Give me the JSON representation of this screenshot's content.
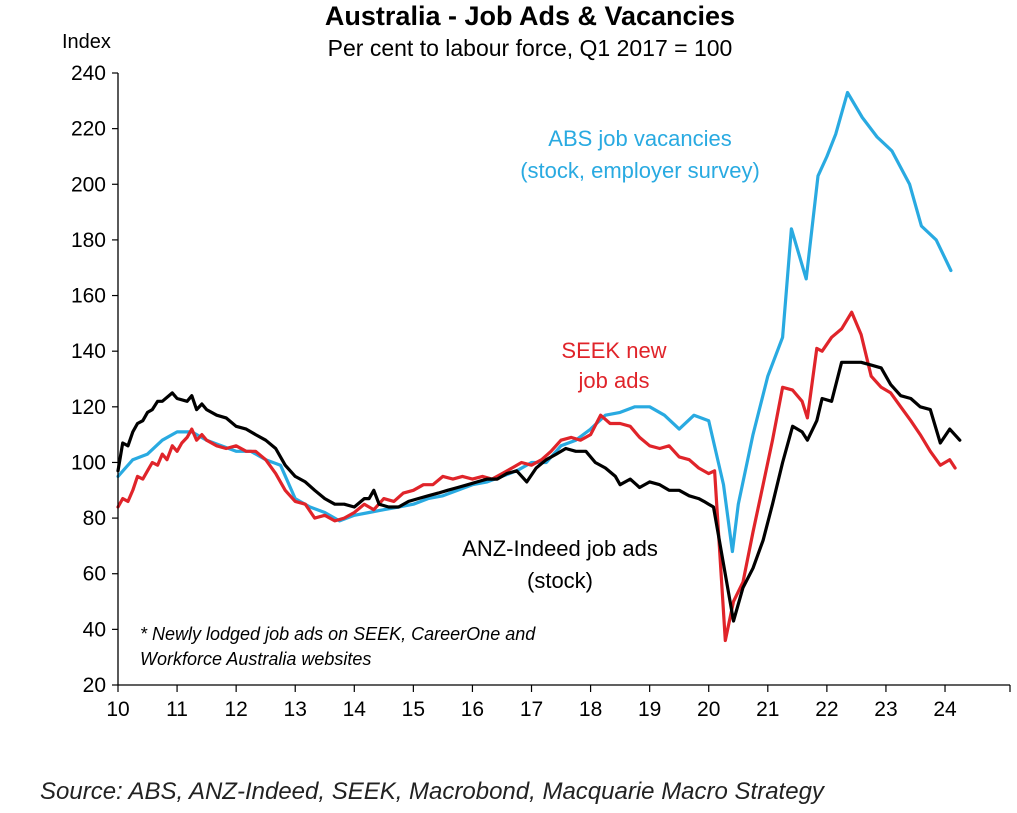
{
  "chart_data": {
    "type": "line",
    "title": "Australia - Job Ads & Vacancies",
    "subtitle": "Per cent to labour force, Q1 2017 = 100",
    "ylabel": "Index",
    "xlim": [
      2010,
      2025.1
    ],
    "ylim": [
      20,
      240
    ],
    "yticks": [
      20,
      40,
      60,
      80,
      100,
      120,
      140,
      160,
      180,
      200,
      220,
      240
    ],
    "xticks": [
      {
        "v": 2010,
        "label": "10"
      },
      {
        "v": 2011,
        "label": "11"
      },
      {
        "v": 2012,
        "label": "12"
      },
      {
        "v": 2013,
        "label": "13"
      },
      {
        "v": 2014,
        "label": "14"
      },
      {
        "v": 2015,
        "label": "15"
      },
      {
        "v": 2016,
        "label": "16"
      },
      {
        "v": 2017,
        "label": "17"
      },
      {
        "v": 2018,
        "label": "18"
      },
      {
        "v": 2019,
        "label": "19"
      },
      {
        "v": 2020,
        "label": "20"
      },
      {
        "v": 2021,
        "label": "21"
      },
      {
        "v": 2022,
        "label": "22"
      },
      {
        "v": 2023,
        "label": "23"
      },
      {
        "v": 2024,
        "label": "24"
      }
    ],
    "grid": false,
    "series": [
      {
        "name": "ABS job vacancies",
        "label_lines": [
          "ABS job vacancies",
          "(stock, employer survey)"
        ],
        "color": "#29aae1",
        "points": [
          [
            2010.0,
            95
          ],
          [
            2010.25,
            101
          ],
          [
            2010.5,
            103
          ],
          [
            2010.75,
            108
          ],
          [
            2011.0,
            111
          ],
          [
            2011.25,
            111
          ],
          [
            2011.5,
            108
          ],
          [
            2011.75,
            106
          ],
          [
            2012.0,
            104
          ],
          [
            2012.25,
            104
          ],
          [
            2012.5,
            101
          ],
          [
            2012.75,
            99
          ],
          [
            2013.0,
            87
          ],
          [
            2013.25,
            84
          ],
          [
            2013.5,
            82
          ],
          [
            2013.75,
            79
          ],
          [
            2014.0,
            81
          ],
          [
            2014.25,
            82
          ],
          [
            2014.5,
            83
          ],
          [
            2014.75,
            84
          ],
          [
            2015.0,
            85
          ],
          [
            2015.25,
            87
          ],
          [
            2015.5,
            88
          ],
          [
            2015.75,
            90
          ],
          [
            2016.0,
            92
          ],
          [
            2016.25,
            93
          ],
          [
            2016.5,
            95
          ],
          [
            2016.75,
            97
          ],
          [
            2017.0,
            100
          ],
          [
            2017.25,
            100
          ],
          [
            2017.5,
            106
          ],
          [
            2017.75,
            108
          ],
          [
            2018.0,
            112
          ],
          [
            2018.25,
            117
          ],
          [
            2018.5,
            118
          ],
          [
            2018.75,
            120
          ],
          [
            2019.0,
            120
          ],
          [
            2019.25,
            117
          ],
          [
            2019.5,
            112
          ],
          [
            2019.75,
            117
          ],
          [
            2020.0,
            115
          ],
          [
            2020.25,
            92
          ],
          [
            2020.4,
            68
          ],
          [
            2020.5,
            85
          ],
          [
            2020.75,
            110
          ],
          [
            2021.0,
            131
          ],
          [
            2021.25,
            145
          ],
          [
            2021.4,
            184
          ],
          [
            2021.65,
            166
          ],
          [
            2021.85,
            203
          ],
          [
            2022.0,
            210
          ],
          [
            2022.15,
            218
          ],
          [
            2022.35,
            233
          ],
          [
            2022.6,
            224
          ],
          [
            2022.85,
            217
          ],
          [
            2023.1,
            212
          ],
          [
            2023.4,
            200
          ],
          [
            2023.6,
            185
          ],
          [
            2023.85,
            180
          ],
          [
            2024.1,
            169
          ]
        ]
      },
      {
        "name": "SEEK new job ads",
        "label_lines": [
          "SEEK new",
          "job ads"
        ],
        "color": "#e0242a",
        "points": [
          [
            2010.0,
            84
          ],
          [
            2010.08,
            87
          ],
          [
            2010.17,
            86
          ],
          [
            2010.25,
            90
          ],
          [
            2010.33,
            95
          ],
          [
            2010.42,
            94
          ],
          [
            2010.5,
            97
          ],
          [
            2010.58,
            100
          ],
          [
            2010.67,
            99
          ],
          [
            2010.75,
            103
          ],
          [
            2010.83,
            101
          ],
          [
            2010.92,
            106
          ],
          [
            2011.0,
            104
          ],
          [
            2011.08,
            107
          ],
          [
            2011.17,
            109
          ],
          [
            2011.25,
            112
          ],
          [
            2011.33,
            108
          ],
          [
            2011.42,
            110
          ],
          [
            2011.5,
            108
          ],
          [
            2011.67,
            106
          ],
          [
            2011.83,
            105
          ],
          [
            2012.0,
            106
          ],
          [
            2012.17,
            104
          ],
          [
            2012.33,
            104
          ],
          [
            2012.5,
            101
          ],
          [
            2012.67,
            96
          ],
          [
            2012.83,
            90
          ],
          [
            2013.0,
            86
          ],
          [
            2013.17,
            85
          ],
          [
            2013.33,
            80
          ],
          [
            2013.5,
            81
          ],
          [
            2013.67,
            79
          ],
          [
            2013.83,
            80
          ],
          [
            2014.0,
            82
          ],
          [
            2014.17,
            85
          ],
          [
            2014.33,
            83
          ],
          [
            2014.5,
            87
          ],
          [
            2014.67,
            86
          ],
          [
            2014.83,
            89
          ],
          [
            2015.0,
            90
          ],
          [
            2015.17,
            92
          ],
          [
            2015.33,
            92
          ],
          [
            2015.5,
            95
          ],
          [
            2015.67,
            94
          ],
          [
            2015.83,
            95
          ],
          [
            2016.0,
            94
          ],
          [
            2016.17,
            95
          ],
          [
            2016.33,
            94
          ],
          [
            2016.5,
            96
          ],
          [
            2016.67,
            98
          ],
          [
            2016.83,
            100
          ],
          [
            2017.0,
            99
          ],
          [
            2017.17,
            101
          ],
          [
            2017.33,
            104
          ],
          [
            2017.5,
            108
          ],
          [
            2017.67,
            109
          ],
          [
            2017.83,
            108
          ],
          [
            2018.0,
            110
          ],
          [
            2018.17,
            117
          ],
          [
            2018.33,
            114
          ],
          [
            2018.5,
            114
          ],
          [
            2018.67,
            113
          ],
          [
            2018.83,
            109
          ],
          [
            2019.0,
            106
          ],
          [
            2019.17,
            105
          ],
          [
            2019.33,
            106
          ],
          [
            2019.5,
            102
          ],
          [
            2019.67,
            101
          ],
          [
            2019.83,
            98
          ],
          [
            2020.0,
            96
          ],
          [
            2020.1,
            97
          ],
          [
            2020.28,
            36
          ],
          [
            2020.42,
            50
          ],
          [
            2020.58,
            57
          ],
          [
            2020.75,
            75
          ],
          [
            2020.92,
            92
          ],
          [
            2021.08,
            108
          ],
          [
            2021.25,
            127
          ],
          [
            2021.42,
            126
          ],
          [
            2021.58,
            122
          ],
          [
            2021.67,
            116
          ],
          [
            2021.83,
            141
          ],
          [
            2021.92,
            140
          ],
          [
            2022.08,
            145
          ],
          [
            2022.25,
            148
          ],
          [
            2022.42,
            154
          ],
          [
            2022.58,
            146
          ],
          [
            2022.75,
            131
          ],
          [
            2022.92,
            127
          ],
          [
            2023.08,
            125
          ],
          [
            2023.25,
            120
          ],
          [
            2023.42,
            115
          ],
          [
            2023.58,
            110
          ],
          [
            2023.75,
            104
          ],
          [
            2023.92,
            99
          ],
          [
            2024.0,
            100
          ],
          [
            2024.08,
            101
          ],
          [
            2024.17,
            98
          ]
        ]
      },
      {
        "name": "ANZ-Indeed job ads",
        "label_lines": [
          "ANZ-Indeed job ads",
          "(stock)"
        ],
        "color": "#000000",
        "points": [
          [
            2010.0,
            97
          ],
          [
            2010.08,
            107
          ],
          [
            2010.17,
            106
          ],
          [
            2010.25,
            111
          ],
          [
            2010.33,
            114
          ],
          [
            2010.42,
            115
          ],
          [
            2010.5,
            118
          ],
          [
            2010.58,
            119
          ],
          [
            2010.67,
            122
          ],
          [
            2010.75,
            122
          ],
          [
            2010.92,
            125
          ],
          [
            2011.0,
            123
          ],
          [
            2011.17,
            122
          ],
          [
            2011.25,
            124
          ],
          [
            2011.33,
            119
          ],
          [
            2011.42,
            121
          ],
          [
            2011.5,
            119
          ],
          [
            2011.67,
            117
          ],
          [
            2011.83,
            116
          ],
          [
            2012.0,
            113
          ],
          [
            2012.17,
            112
          ],
          [
            2012.33,
            110
          ],
          [
            2012.5,
            108
          ],
          [
            2012.67,
            105
          ],
          [
            2012.83,
            99
          ],
          [
            2013.0,
            95
          ],
          [
            2013.17,
            93
          ],
          [
            2013.33,
            90
          ],
          [
            2013.5,
            87
          ],
          [
            2013.67,
            85
          ],
          [
            2013.83,
            85
          ],
          [
            2014.0,
            84
          ],
          [
            2014.17,
            87
          ],
          [
            2014.25,
            87
          ],
          [
            2014.33,
            90
          ],
          [
            2014.42,
            85
          ],
          [
            2014.58,
            84
          ],
          [
            2014.75,
            84
          ],
          [
            2014.92,
            86
          ],
          [
            2015.08,
            87
          ],
          [
            2015.25,
            88
          ],
          [
            2015.42,
            89
          ],
          [
            2015.58,
            90
          ],
          [
            2015.75,
            91
          ],
          [
            2015.92,
            92
          ],
          [
            2016.08,
            93
          ],
          [
            2016.25,
            94
          ],
          [
            2016.42,
            94
          ],
          [
            2016.58,
            96
          ],
          [
            2016.75,
            97
          ],
          [
            2016.92,
            93
          ],
          [
            2017.08,
            98
          ],
          [
            2017.25,
            101
          ],
          [
            2017.42,
            103
          ],
          [
            2017.58,
            105
          ],
          [
            2017.75,
            104
          ],
          [
            2017.92,
            104
          ],
          [
            2018.08,
            100
          ],
          [
            2018.25,
            98
          ],
          [
            2018.42,
            95
          ],
          [
            2018.5,
            92
          ],
          [
            2018.67,
            94
          ],
          [
            2018.83,
            91
          ],
          [
            2019.0,
            93
          ],
          [
            2019.17,
            92
          ],
          [
            2019.33,
            90
          ],
          [
            2019.5,
            90
          ],
          [
            2019.67,
            88
          ],
          [
            2019.83,
            87
          ],
          [
            2019.92,
            86
          ],
          [
            2020.0,
            85
          ],
          [
            2020.08,
            84
          ],
          [
            2020.42,
            43
          ],
          [
            2020.58,
            55
          ],
          [
            2020.75,
            62
          ],
          [
            2020.92,
            72
          ],
          [
            2021.08,
            85
          ],
          [
            2021.25,
            100
          ],
          [
            2021.42,
            113
          ],
          [
            2021.58,
            111
          ],
          [
            2021.67,
            108
          ],
          [
            2021.83,
            115
          ],
          [
            2021.92,
            123
          ],
          [
            2022.08,
            122
          ],
          [
            2022.25,
            136
          ],
          [
            2022.42,
            136
          ],
          [
            2022.58,
            136
          ],
          [
            2022.75,
            135
          ],
          [
            2022.92,
            134
          ],
          [
            2023.08,
            128
          ],
          [
            2023.25,
            124
          ],
          [
            2023.42,
            123
          ],
          [
            2023.58,
            120
          ],
          [
            2023.75,
            119
          ],
          [
            2023.92,
            107
          ],
          [
            2024.08,
            112
          ],
          [
            2024.25,
            108
          ]
        ]
      }
    ],
    "note_lines": [
      "* Newly lodged job ads on SEEK, CareerOne and",
      "Workforce Australia websites"
    ],
    "source": "Source: ABS, ANZ-Indeed, SEEK, Macrobond, Macquarie Macro Strategy"
  }
}
